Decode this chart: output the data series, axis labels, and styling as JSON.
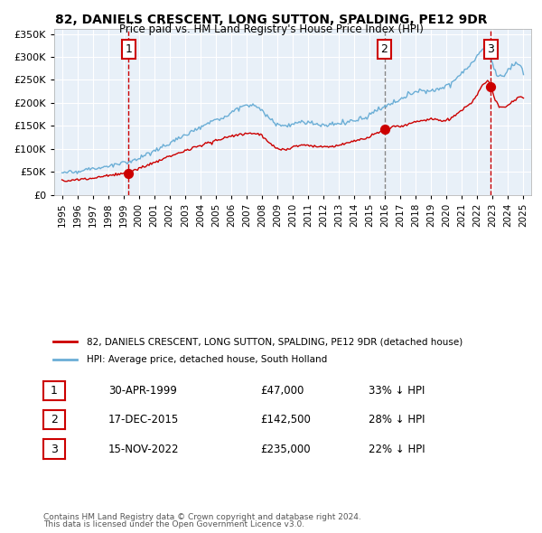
{
  "title": "82, DANIELS CRESCENT, LONG SUTTON, SPALDING, PE12 9DR",
  "subtitle": "Price paid vs. HM Land Registry's House Price Index (HPI)",
  "legend_line1": "82, DANIELS CRESCENT, LONG SUTTON, SPALDING, PE12 9DR (detached house)",
  "legend_line2": "HPI: Average price, detached house, South Holland",
  "footer1": "Contains HM Land Registry data © Crown copyright and database right 2024.",
  "footer2": "This data is licensed under the Open Government Licence v3.0.",
  "sale_labels": [
    "1",
    "2",
    "3"
  ],
  "sale_dates_label": [
    "30-APR-1999",
    "17-DEC-2015",
    "15-NOV-2022"
  ],
  "sale_prices": [
    47000,
    142500,
    235000
  ],
  "sale_pct": [
    "33% ↓ HPI",
    "28% ↓ HPI",
    "22% ↓ HPI"
  ],
  "sale_years": [
    1999.33,
    2015.96,
    2022.88
  ],
  "hpi_color": "#6baed6",
  "price_color": "#cc0000",
  "bg_color": "#e8f0f8",
  "vline_color_1": "#cc0000",
  "vline_color_23": "#888888",
  "ylim": [
    0,
    360000
  ],
  "yticks": [
    0,
    50000,
    100000,
    150000,
    200000,
    250000,
    300000,
    350000
  ],
  "xmin": 1994.5,
  "xmax": 2025.5
}
